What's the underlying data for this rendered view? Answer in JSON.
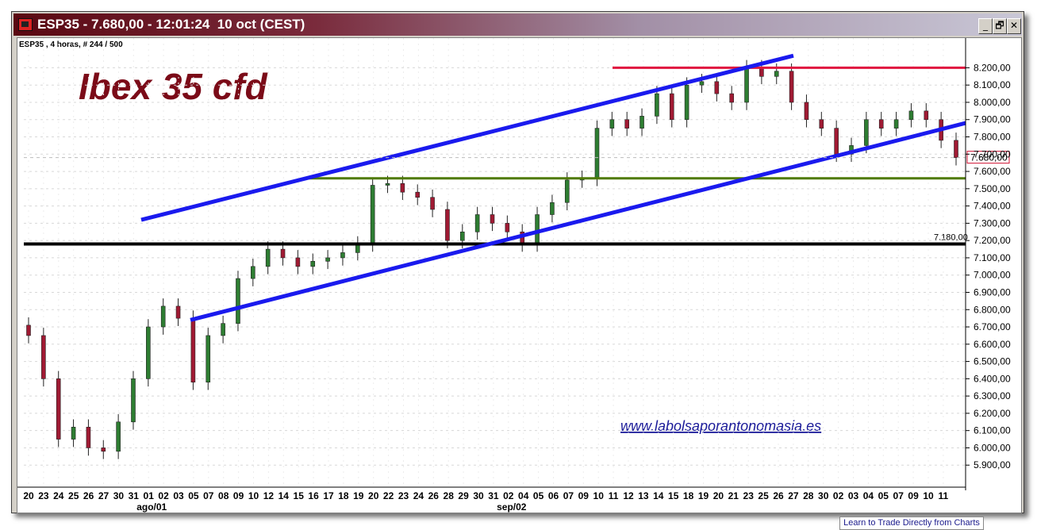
{
  "window": {
    "title": "ESP35 - 7.680,00 - 12:01:24  10 oct (CEST)",
    "buttons": {
      "minimize": "_",
      "restore": "🗗",
      "close": "✕"
    }
  },
  "header_info": "ESP35 , 4 horas, # 244 / 500",
  "chart_title": "Ibex 35 cfd",
  "watermark": "www.labolsaporantonomasia.es",
  "footer_link": "Learn to Trade Directly from Charts",
  "chart_data": {
    "type": "candlestick",
    "symbol": "ESP35",
    "timeframe": "4 horas",
    "ylim": [
      5800,
      8280
    ],
    "y_ticks": [
      "8.200,00",
      "8.100,00",
      "8.000,00",
      "7.900,00",
      "7.800,00",
      "7.700,00",
      "7.600,00",
      "7.500,00",
      "7.400,00",
      "7.300,00",
      "7.200,00",
      "7.100,00",
      "7.000,00",
      "6.900,00",
      "6.800,00",
      "6.700,00",
      "6.600,00",
      "6.500,00",
      "6.400,00",
      "6.300,00",
      "6.200,00",
      "6.100,00",
      "6.000,00",
      "5.900,00"
    ],
    "y_tick_values": [
      8200,
      8100,
      8000,
      7900,
      7800,
      7700,
      7600,
      7500,
      7400,
      7300,
      7200,
      7100,
      7000,
      6900,
      6800,
      6700,
      6600,
      6500,
      6400,
      6300,
      6200,
      6100,
      6000,
      5900
    ],
    "x_ticks": [
      "20",
      "23",
      "24",
      "25",
      "26",
      "27",
      "30",
      "31",
      "01",
      "02",
      "03",
      "05",
      "07",
      "08",
      "09",
      "10",
      "12",
      "14",
      "15",
      "16",
      "17",
      "18",
      "19",
      "20",
      "22",
      "23",
      "24",
      "26",
      "28",
      "29",
      "30",
      "31",
      "02",
      "04",
      "05",
      "06",
      "07",
      "09",
      "10",
      "11",
      "12",
      "13",
      "14",
      "15",
      "18",
      "19",
      "20",
      "21",
      "23",
      "25",
      "26",
      "27",
      "28",
      "30",
      "02",
      "03",
      "04",
      "05",
      "07",
      "09",
      "10",
      "11"
    ],
    "month_labels": [
      {
        "label": "ago/01",
        "at": "01"
      },
      {
        "label": "sep/02",
        "at": "02"
      }
    ],
    "last_price": "7.680,00",
    "last_price_value": 7680,
    "support_label": "7.180,00",
    "support_value": 7180,
    "resistance_value": 8200,
    "green_level_value": 7560,
    "colors": {
      "up": "#2e7d32",
      "down": "#a01a33",
      "channel": "#1a1aee",
      "resistance": "#e0173f",
      "support": "#000000",
      "green_level": "#4f7a00",
      "title": "#7b0b18"
    },
    "channel_upper": [
      {
        "x_index": 8,
        "value": 7320
      },
      {
        "x_index": 50,
        "value": 8270
      }
    ],
    "channel_lower": [
      {
        "x_index": 11,
        "value": 6740
      },
      {
        "x_index": 62,
        "value": 7880
      }
    ],
    "candles_close": [
      6650,
      6400,
      6050,
      6120,
      6000,
      5980,
      6150,
      6400,
      6700,
      6820,
      6750,
      6380,
      6650,
      6720,
      6980,
      7050,
      7150,
      7100,
      7050,
      7080,
      7100,
      7130,
      7180,
      7520,
      7530,
      7480,
      7450,
      7380,
      7200,
      7250,
      7350,
      7300,
      7250,
      7180,
      7350,
      7420,
      7550,
      7560,
      7850,
      7900,
      7850,
      7920,
      8050,
      7900,
      8100,
      8120,
      8050,
      8000,
      8200,
      8150,
      8180,
      8000,
      7900,
      7850,
      7700,
      7750,
      7900,
      7850,
      7900,
      7950,
      7900,
      7780,
      7680
    ]
  }
}
